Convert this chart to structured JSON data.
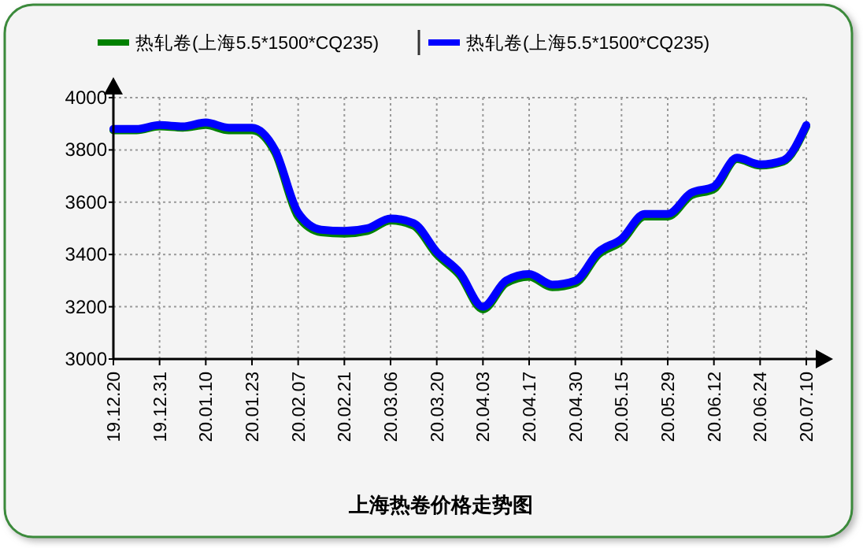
{
  "chart_data": {
    "type": "line",
    "title": "上海热卷价格走势图",
    "categories": [
      "19.12.20",
      null,
      "19.12.31",
      null,
      "20.01.10",
      null,
      "20.01.23",
      null,
      "20.02.07",
      null,
      "20.02.21",
      null,
      "20.03.06",
      null,
      "20.03.20",
      null,
      "20.04.03",
      null,
      "20.04.17",
      null,
      "20.04.30",
      null,
      "20.05.15",
      null,
      "20.05.29",
      null,
      "20.06.12",
      null,
      "20.06.24",
      null,
      "20.07.10"
    ],
    "series": [
      {
        "name": "热轧卷(上海5.5*1500*CQ235)",
        "color": "#008000",
        "values": [
          3875,
          3875,
          3890,
          3885,
          3895,
          3875,
          3875,
          3790,
          3545,
          3485,
          3480,
          3490,
          3530,
          3510,
          3400,
          3320,
          3190,
          3290,
          3315,
          3275,
          3290,
          3400,
          3450,
          3545,
          3545,
          3625,
          3650,
          3765,
          3740,
          3755,
          3890
        ]
      },
      {
        "name": "热轧卷(上海5.5*1500*CQ235)",
        "color": "#0000ff",
        "values": [
          3880,
          3880,
          3895,
          3890,
          3905,
          3885,
          3885,
          3800,
          3560,
          3495,
          3490,
          3500,
          3538,
          3520,
          3410,
          3330,
          3200,
          3300,
          3325,
          3285,
          3300,
          3410,
          3460,
          3555,
          3555,
          3635,
          3660,
          3770,
          3745,
          3760,
          3895
        ]
      }
    ],
    "ylim": [
      3000,
      4000
    ],
    "yticks": [
      3000,
      3200,
      3400,
      3600,
      3800,
      4000
    ],
    "grid": true,
    "legend": "top",
    "line_style": "solid",
    "marker": "none"
  }
}
